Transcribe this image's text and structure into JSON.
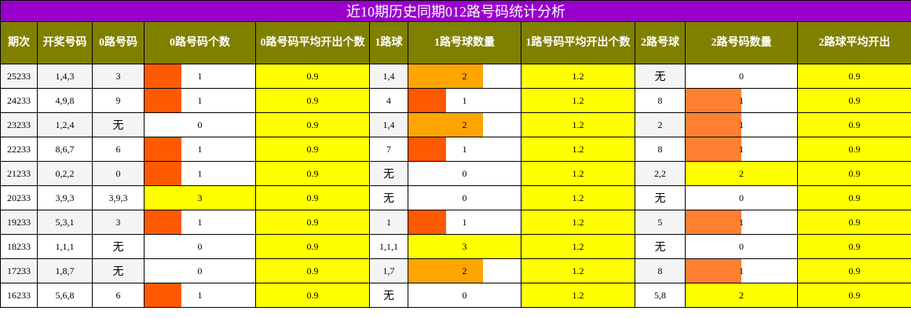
{
  "header": {
    "title": "近10期历史同期012路号码统计分析"
  },
  "table": {
    "columns": [
      "期次",
      "开奖号码",
      "0路号码",
      "0路号码个数",
      "0路号码平均开出个数",
      "1路球",
      "1路号球数量",
      "1路号码平均开出个数",
      "2路号球",
      "2路号码数量",
      "2路球平均开出"
    ],
    "rows": [
      [
        "25233",
        "1,4,3",
        "3",
        1,
        0.9,
        "1,4",
        2,
        1.2,
        "无",
        0,
        0.9
      ],
      [
        "24233",
        "4,9,8",
        "9",
        1,
        0.9,
        "4",
        1,
        1.2,
        "8",
        1,
        0.9
      ],
      [
        "23233",
        "1,2,4",
        "无",
        0,
        0.9,
        "1,4",
        2,
        1.2,
        "2",
        1,
        0.9
      ],
      [
        "22233",
        "8,6,7",
        "6",
        1,
        0.9,
        "7",
        1,
        1.2,
        "8",
        1,
        0.9
      ],
      [
        "21233",
        "0,2,2",
        "0",
        1,
        0.9,
        "无",
        0,
        1.2,
        "2,2",
        2,
        0.9
      ],
      [
        "20233",
        "3,9,3",
        "3,9,3",
        3,
        0.9,
        "无",
        0,
        1.2,
        "无",
        0,
        0.9
      ],
      [
        "19233",
        "5,3,1",
        "3",
        1,
        0.9,
        "1",
        1,
        1.2,
        "5",
        1,
        0.9
      ],
      [
        "18233",
        "1,1,1",
        "无",
        0,
        0.9,
        "1,1,1",
        3,
        1.2,
        "无",
        0,
        0.9
      ],
      [
        "17233",
        "1,8,7",
        "无",
        0,
        0.9,
        "1,7",
        2,
        1.2,
        "8",
        1,
        0.9
      ],
      [
        "16233",
        "5,6,8",
        "6",
        1,
        0.9,
        "无",
        0,
        1.2,
        "5,8",
        2,
        0.9
      ]
    ]
  }
}
